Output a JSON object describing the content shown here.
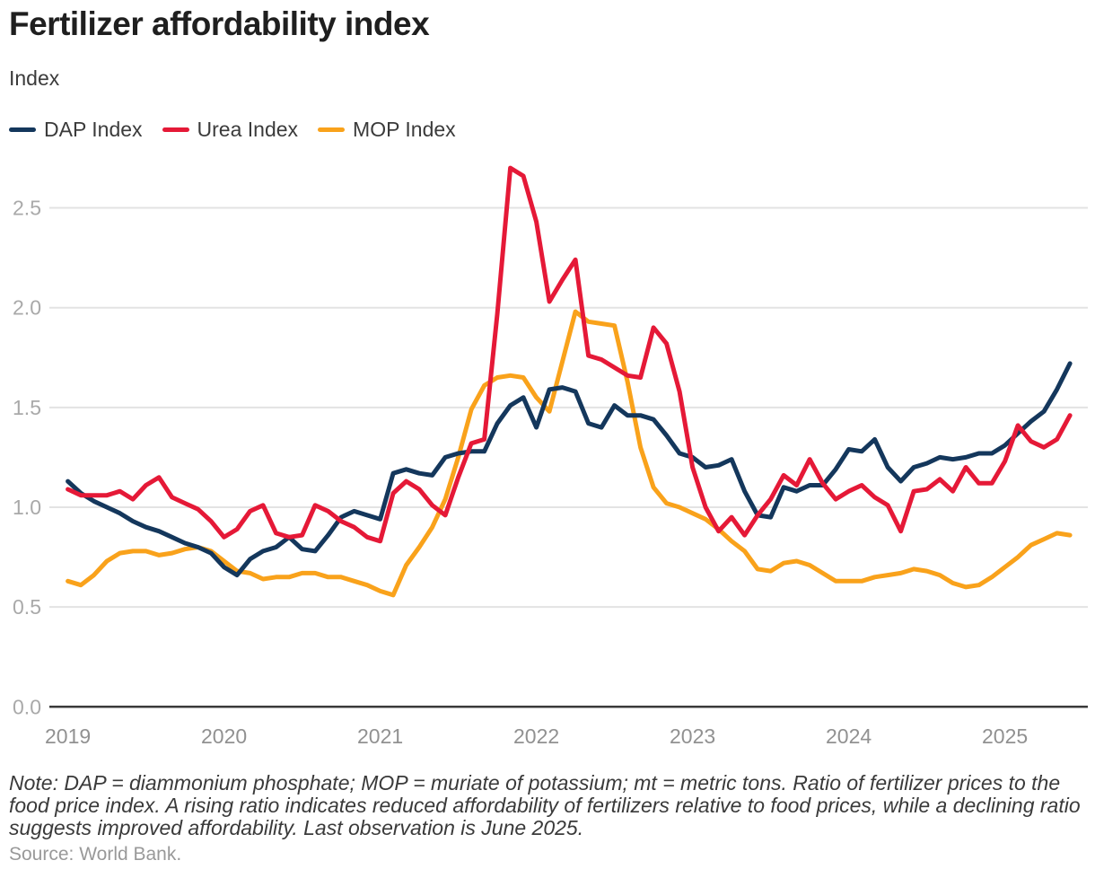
{
  "header": {
    "title": "Fertilizer affordability index",
    "axis_unit_label": "Index"
  },
  "legend": [
    {
      "label": "DAP Index",
      "color": "#14375c"
    },
    {
      "label": "Urea Index",
      "color": "#e51937"
    },
    {
      "label": "MOP Index",
      "color": "#f9a21b"
    }
  ],
  "footer": {
    "note": "Note: DAP = diammonium phosphate; MOP = muriate of potassium; mt = metric tons. Ratio of fertilizer prices to the food price index. A rising ratio indicates reduced affordability of fertilizers relative to food prices, while a declining ratio suggests improved affordability. Last observation is June 2025.",
    "source": "Source: World Bank."
  },
  "chart_data": {
    "type": "line",
    "title": "Fertilizer affordability index",
    "ylabel": "Index",
    "x_unit": "month",
    "x_start": "2019-01",
    "x_end": "2025-06",
    "x_tick_labels": [
      "2019",
      "2020",
      "2021",
      "2022",
      "2023",
      "2024",
      "2025"
    ],
    "y_tick_labels": [
      "0.0",
      "0.5",
      "1.0",
      "1.5",
      "2.0",
      "2.5"
    ],
    "y_gridlines": [
      0.5,
      1.0,
      1.5,
      2.0,
      2.5
    ],
    "ylim": [
      0,
      2.78
    ],
    "grid": "horizontal-only",
    "legend_position": "top-left",
    "colors": {
      "grid": "#e3e3e3",
      "axis": "#3a3a3a",
      "y_tick_text": "#a9a9a9",
      "x_tick_text": "#919191"
    },
    "series": [
      {
        "name": "MOP Index",
        "color": "#f9a21b",
        "values": [
          0.63,
          0.61,
          0.66,
          0.73,
          0.77,
          0.78,
          0.78,
          0.76,
          0.77,
          0.79,
          0.8,
          0.78,
          0.73,
          0.68,
          0.67,
          0.64,
          0.65,
          0.65,
          0.67,
          0.67,
          0.65,
          0.65,
          0.63,
          0.61,
          0.58,
          0.56,
          0.71,
          0.8,
          0.9,
          1.04,
          1.25,
          1.49,
          1.61,
          1.65,
          1.66,
          1.65,
          1.55,
          1.48,
          1.73,
          1.98,
          1.93,
          1.92,
          1.91,
          1.63,
          1.3,
          1.1,
          1.02,
          1.0,
          0.97,
          0.94,
          0.89,
          0.83,
          0.78,
          0.69,
          0.68,
          0.72,
          0.73,
          0.71,
          0.67,
          0.63,
          0.63,
          0.63,
          0.65,
          0.66,
          0.67,
          0.69,
          0.68,
          0.66,
          0.62,
          0.6,
          0.61,
          0.65,
          0.7,
          0.75,
          0.81,
          0.84,
          0.87,
          0.86
        ]
      },
      {
        "name": "DAP Index",
        "color": "#14375c",
        "values": [
          1.13,
          1.07,
          1.03,
          1.0,
          0.97,
          0.93,
          0.9,
          0.88,
          0.85,
          0.82,
          0.8,
          0.77,
          0.7,
          0.66,
          0.74,
          0.78,
          0.8,
          0.85,
          0.79,
          0.78,
          0.86,
          0.95,
          0.98,
          0.96,
          0.94,
          1.17,
          1.19,
          1.17,
          1.16,
          1.25,
          1.27,
          1.28,
          1.28,
          1.42,
          1.51,
          1.55,
          1.4,
          1.59,
          1.6,
          1.58,
          1.42,
          1.4,
          1.51,
          1.46,
          1.46,
          1.44,
          1.36,
          1.27,
          1.25,
          1.2,
          1.21,
          1.24,
          1.08,
          0.96,
          0.95,
          1.1,
          1.08,
          1.11,
          1.11,
          1.19,
          1.29,
          1.28,
          1.34,
          1.2,
          1.13,
          1.2,
          1.22,
          1.25,
          1.24,
          1.25,
          1.27,
          1.27,
          1.31,
          1.37,
          1.43,
          1.48,
          1.59,
          1.72
        ]
      },
      {
        "name": "Urea Index",
        "color": "#e51937",
        "values": [
          1.09,
          1.06,
          1.06,
          1.06,
          1.08,
          1.04,
          1.11,
          1.15,
          1.05,
          1.02,
          0.99,
          0.93,
          0.85,
          0.89,
          0.98,
          1.01,
          0.87,
          0.85,
          0.86,
          1.01,
          0.98,
          0.93,
          0.9,
          0.85,
          0.83,
          1.07,
          1.13,
          1.09,
          1.01,
          0.96,
          1.15,
          1.32,
          1.34,
          1.97,
          2.7,
          2.66,
          2.43,
          2.03,
          2.14,
          2.24,
          1.76,
          1.74,
          1.7,
          1.66,
          1.65,
          1.9,
          1.82,
          1.58,
          1.2,
          1.0,
          0.88,
          0.95,
          0.86,
          0.96,
          1.04,
          1.16,
          1.11,
          1.24,
          1.12,
          1.04,
          1.08,
          1.11,
          1.05,
          1.01,
          0.88,
          1.08,
          1.09,
          1.14,
          1.08,
          1.2,
          1.12,
          1.12,
          1.23,
          1.41,
          1.33,
          1.3,
          1.34,
          1.46
        ]
      }
    ]
  }
}
